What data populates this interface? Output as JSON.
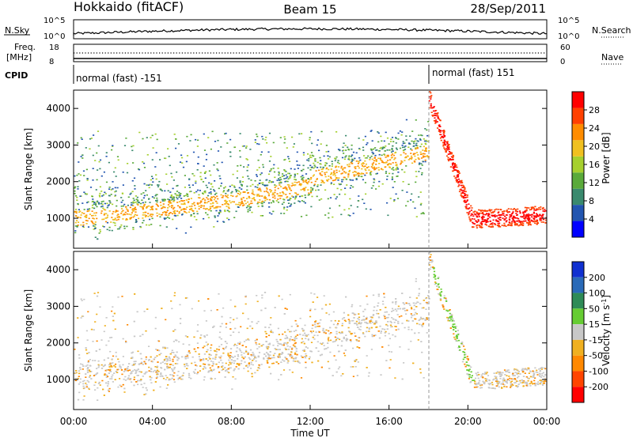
{
  "header": {
    "title": "Hokkaido (fitACF)",
    "beam": "Beam 15",
    "date": "28/Sep/2011"
  },
  "status_panels": {
    "nsky_label": "N.Sky",
    "nsearch_label": "N.Search",
    "count_ticks": [
      "10^5",
      "10^0"
    ],
    "freq_label_line1": "Freq.",
    "freq_label_line2": "[MHz]",
    "freq_ticks": [
      "18",
      "8"
    ],
    "nave_label": "Nave",
    "nave_ticks": [
      "60",
      "0"
    ],
    "cpid_label": "CPID",
    "cpid_segments": [
      {
        "label": "normal (fast) -151",
        "start_hour": 0,
        "end_hour": 18.1
      },
      {
        "label": "normal (fast) 151",
        "start_hour": 18.1,
        "end_hour": 24
      }
    ]
  },
  "chart_data": [
    {
      "type": "heatmap",
      "parameter": "power",
      "ylabel": "Slant Range [km]",
      "y_ticks": [
        1000,
        2000,
        3000,
        4000
      ],
      "ylim": [
        180,
        4500
      ],
      "xlim_hours": [
        0,
        24
      ],
      "colorbar": {
        "label": "Power [dB]",
        "ticks": [
          4,
          8,
          12,
          16,
          20,
          24,
          28
        ],
        "range": [
          0,
          32
        ],
        "colors": [
          "#0000ff",
          "#2255b0",
          "#3a8a6e",
          "#5aaa3a",
          "#a6d02e",
          "#f0c020",
          "#ff8c00",
          "#ff4000",
          "#ff0000"
        ]
      },
      "features": [
        {
          "desc": "main echo band",
          "time_hours": [
            0,
            18
          ],
          "range_km": [
            900,
            2800
          ],
          "dominant_db": 20
        },
        {
          "desc": "descending echo after 18 UT",
          "time_hours": [
            18.2,
            24
          ],
          "range_km": [
            4400,
            1000
          ],
          "dominant_db": 28
        }
      ]
    },
    {
      "type": "heatmap",
      "parameter": "velocity",
      "ylabel": "Slant Range [km]",
      "y_ticks": [
        1000,
        2000,
        3000,
        4000
      ],
      "ylim": [
        180,
        4500
      ],
      "xlim_hours": [
        0,
        24
      ],
      "x_tick_labels": [
        "00:00",
        "04:00",
        "08:00",
        "12:00",
        "16:00",
        "20:00",
        "00:00"
      ],
      "xlabel": "Time UT",
      "colorbar": {
        "label": "Velocity [m s^-1]",
        "ticks": [
          200,
          100,
          50,
          15,
          -15,
          -50,
          -100,
          -200
        ],
        "colors": [
          "#1030d0",
          "#2a6ab8",
          "#2e8b57",
          "#66cc33",
          "#c8c8c8",
          "#f0b020",
          "#ff8800",
          "#ff4400",
          "#ff0000"
        ]
      },
      "features": [
        {
          "desc": "ground scatter band",
          "time_hours": [
            0,
            24
          ],
          "range_km": [
            900,
            2800
          ],
          "velocity_class": "-15 to 15"
        },
        {
          "desc": "positive velocity streak",
          "time_hours": [
            18.3,
            20.2
          ],
          "range_km": [
            4400,
            800
          ],
          "velocity_class": "50"
        }
      ]
    }
  ]
}
